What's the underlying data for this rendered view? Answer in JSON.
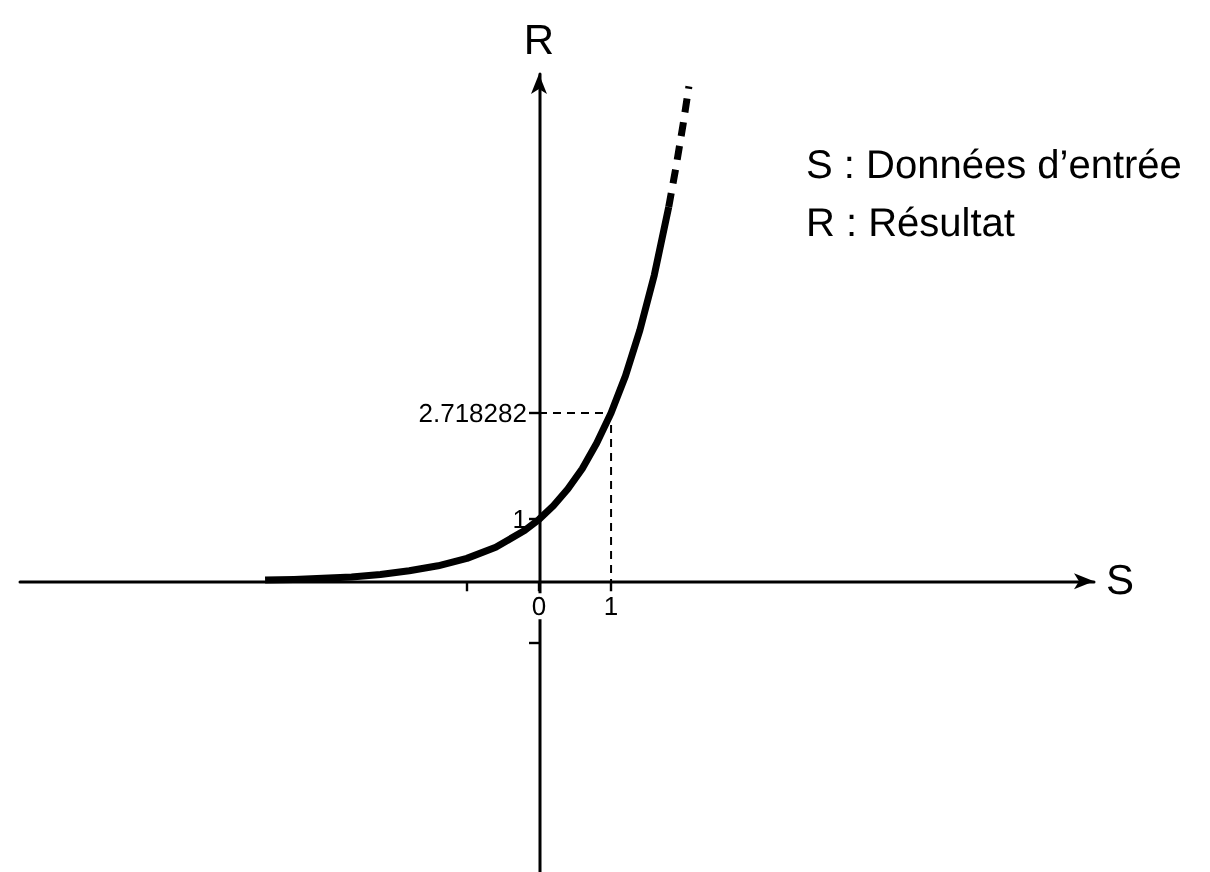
{
  "chart_data": {
    "type": "line",
    "xlabel": "S",
    "ylabel": "R",
    "annotations": [
      "S : Données d’entrée",
      "R : Résultat"
    ],
    "xlim": [
      -7.2,
      7.7
    ],
    "ylim": [
      -4.7,
      8.2
    ],
    "xticks": [
      {
        "value": -1,
        "label": null
      },
      0,
      1
    ],
    "yticks": [
      {
        "value": -1,
        "label": null
      },
      1,
      2.718282
    ],
    "marker": "none",
    "series": [
      {
        "color": "#000000",
        "line_style": "solid",
        "x": [
          -3.8,
          -3.4,
          -3,
          -2.6,
          -2.2,
          -1.8,
          -1.4,
          -1,
          -0.6,
          -0.2,
          0,
          0.2,
          0.4,
          0.6,
          0.8,
          1,
          1.2,
          1.4,
          1.6,
          1.8
        ],
        "values": [
          0.02,
          0.03,
          0.05,
          0.07,
          0.11,
          0.17,
          0.25,
          0.37,
          0.55,
          0.82,
          1,
          1.22,
          1.49,
          1.82,
          2.23,
          2.718282,
          3.32,
          4.06,
          4.95,
          6.05
        ]
      },
      {
        "color": "#000000",
        "line_style": "dashed",
        "x": [
          1.8,
          1.9,
          2,
          2.08
        ],
        "values": [
          6.05,
          6.69,
          7.39,
          8.0
        ]
      },
      {
        "color": "#000000",
        "line_style": "dashed",
        "x": [
          0,
          1,
          1
        ],
        "values": [
          2.718282,
          2.718282,
          0
        ]
      }
    ]
  }
}
